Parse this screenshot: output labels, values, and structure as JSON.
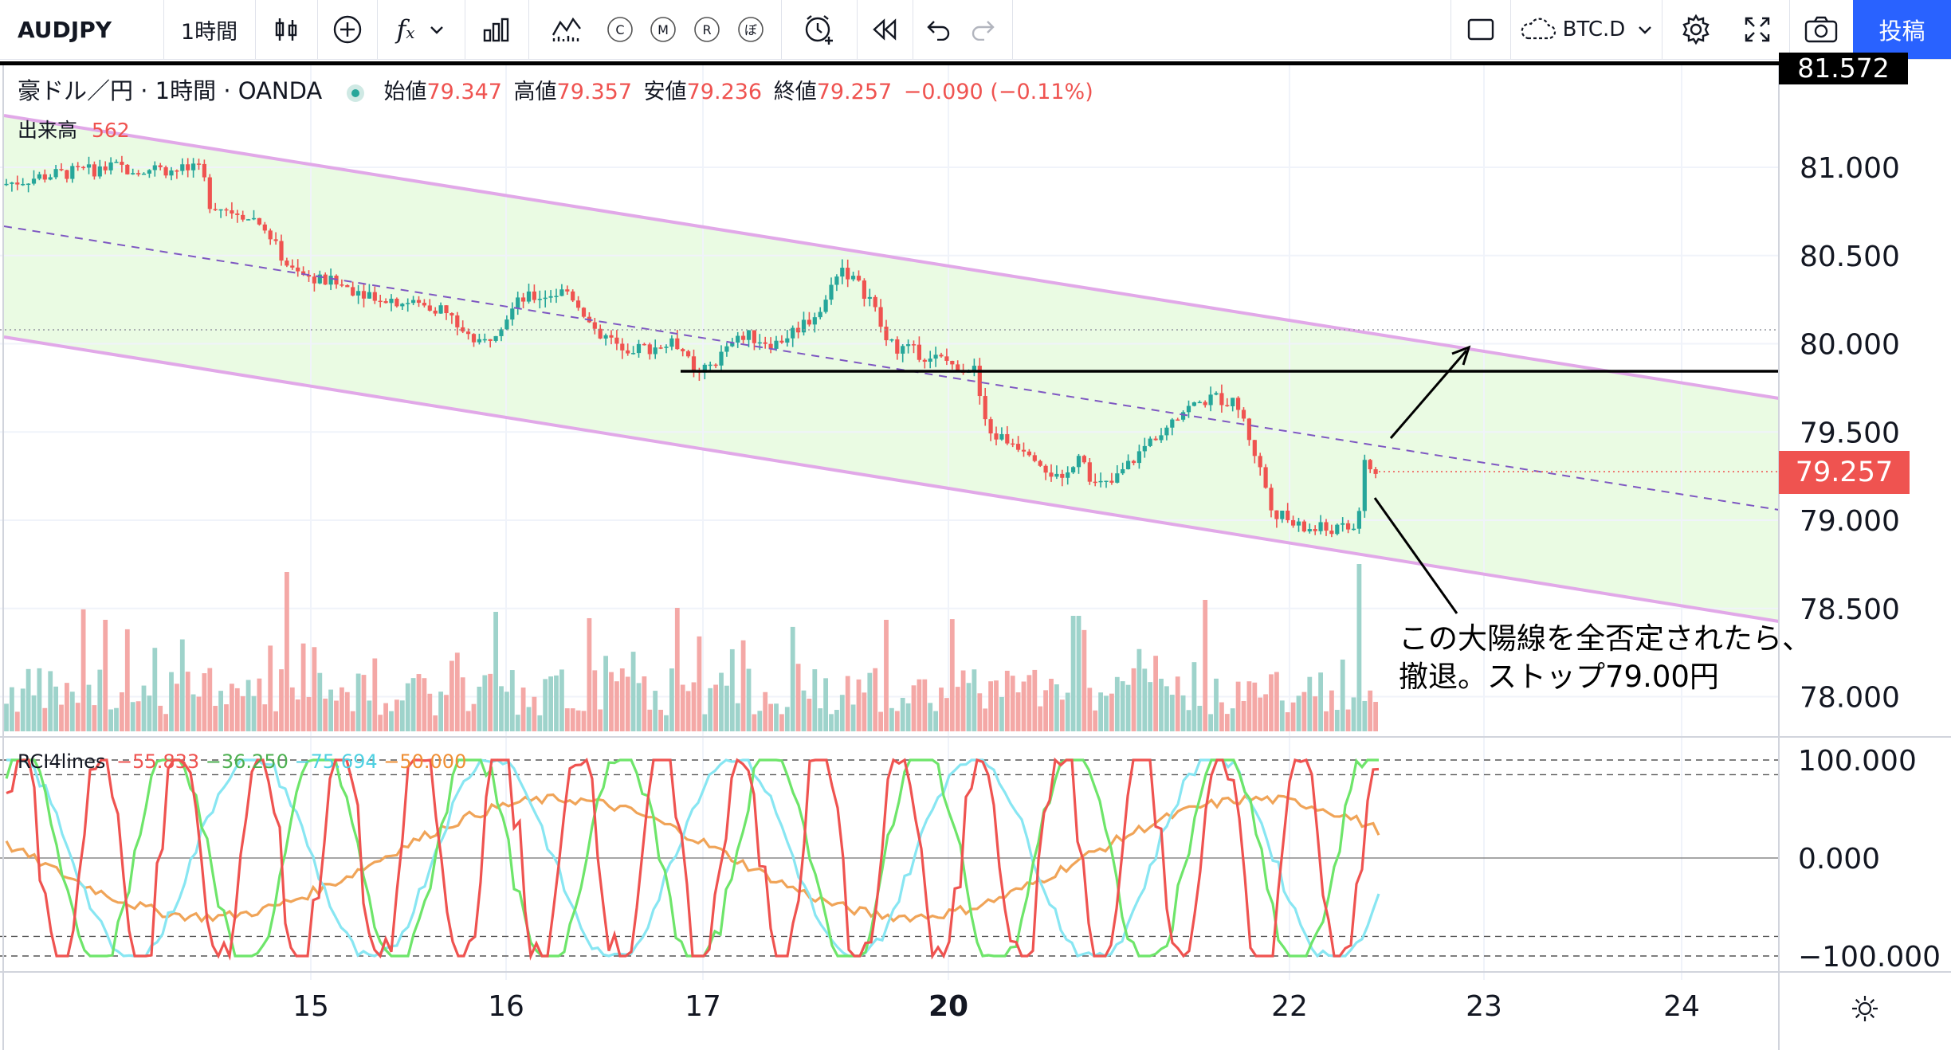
{
  "toolbar": {
    "symbol": "AUDJPY",
    "interval": "1時間",
    "compare_symbol": "BTC.D",
    "post_label": "投稿",
    "indicator_letters": [
      "C",
      "M",
      "R",
      "ぼ"
    ]
  },
  "legend": {
    "title": "豪ドル／円 · 1時間 · OANDA",
    "open_label": "始値",
    "open": "79.347",
    "high_label": "高値",
    "high": "79.357",
    "low_label": "安値",
    "low": "79.236",
    "close_label": "終値",
    "close": "79.257",
    "change": "−0.090 (−0.11%)"
  },
  "volume_legend": {
    "label": "出来高",
    "value": "562"
  },
  "rci_legend": {
    "label": "RCI4lines",
    "v1": "−55.833",
    "v2": "−36.250",
    "v3": "−75.694",
    "v4": "−50.000"
  },
  "price_axis": {
    "top_tag": "81.572",
    "current_tag": "79.257",
    "labels": [
      "81.000",
      "80.500",
      "80.000",
      "79.500",
      "79.000",
      "78.500",
      "78.000"
    ]
  },
  "rci_axis": {
    "labels": [
      "100.000",
      "0.000",
      "−100.000"
    ]
  },
  "time_axis": {
    "labels": [
      "15",
      "16",
      "17",
      "20",
      "22",
      "23",
      "24"
    ]
  },
  "annotation": {
    "line1": "この大陽線を全否定されたら、",
    "line2": "撤退。ストップ79.00円"
  },
  "colors": {
    "up": "#26a69a",
    "down": "#ef5350",
    "channel_line": "#e1a8e8",
    "channel_fill": "#eafbe3",
    "rci_1": "#ef5350",
    "rci_2": "#6ee56a",
    "rci_3": "#88e6f2",
    "rci_4": "#f0a458",
    "accent": "#2962ff"
  },
  "icons": [
    "candles-icon",
    "add-icon",
    "fx-icon",
    "bars-icon",
    "indicators-icon",
    "alert-icon",
    "replay-icon",
    "undo-icon",
    "redo-icon",
    "layout-icon",
    "cloud-icon",
    "settings-icon",
    "fullscreen-icon",
    "camera-icon",
    "sun-icon"
  ]
}
